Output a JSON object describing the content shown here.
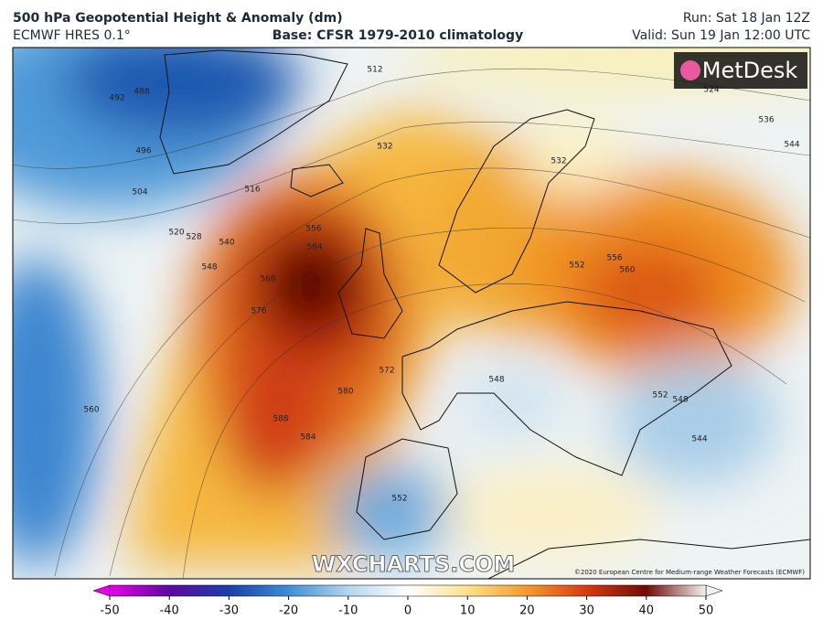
{
  "header": {
    "title": "500 hPa Geopotential Height & Anomaly (dm)",
    "model": "ECMWF HRES 0.1°",
    "base": "Base: CFSR 1979-2010 climatology",
    "run": "Run: Sat 18 Jan 12Z",
    "valid": "Valid: Sun 19 Jan 12:00 UTC"
  },
  "map": {
    "contour_labels": [
      512,
      524,
      536,
      544,
      532,
      516,
      520,
      528,
      540,
      548,
      556,
      564,
      568,
      576,
      588,
      584,
      580,
      572,
      560,
      548,
      552,
      552,
      548,
      544,
      552,
      556,
      560,
      492,
      488,
      496,
      504,
      532
    ],
    "logo": "MetDesk",
    "watermark": "WXCHARTS.COM",
    "copyright": "©2020 European Centre for Medium-range Weather Forecasts (ECMWF)"
  },
  "colorbar": {
    "range": [
      -50,
      50
    ],
    "ticks": [
      -50,
      -40,
      -30,
      -20,
      -10,
      0,
      10,
      20,
      30,
      40,
      50
    ],
    "colors": [
      "#e800e8",
      "#5a0aa0",
      "#1c3fa8",
      "#3c8fd6",
      "#b4d6ec",
      "#ffffff",
      "#fde08a",
      "#f59a2a",
      "#d83a12",
      "#6e0c06",
      "#f2f2f2"
    ]
  }
}
